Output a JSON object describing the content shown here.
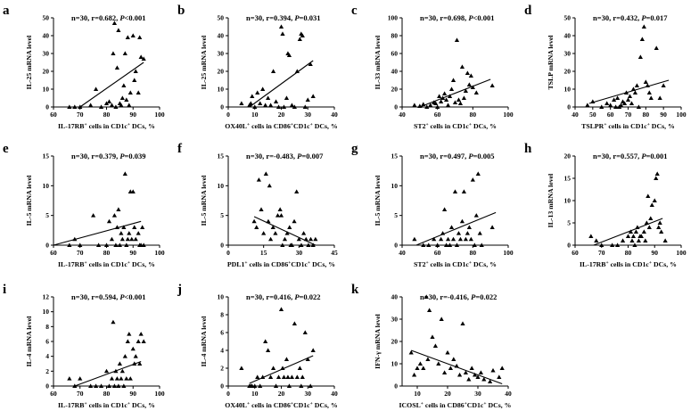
{
  "chart_data": [
    {
      "id": "a",
      "type": "scatter",
      "panel_label": "a",
      "annotation": {
        "n": "n=30, ",
        "r": "r=0.682, ",
        "p": "P<0.001"
      },
      "ylabel": "IL-25 mRNA level",
      "xlabel": "IL-17RB<sup>+</sup> cells in CD1c<sup>+</sup> DCs, %",
      "xlim": [
        60,
        100
      ],
      "ylim": [
        0,
        50
      ],
      "xticks": [
        60,
        70,
        80,
        90,
        100
      ],
      "yticks": [
        0,
        10,
        20,
        30,
        40,
        50
      ],
      "x": [
        66,
        68,
        70,
        74,
        76,
        78,
        80,
        81,
        82,
        82.5,
        83,
        83.5,
        84,
        84.5,
        85,
        85.5,
        86,
        86.5,
        87,
        87.5,
        88,
        88.5,
        89,
        90,
        90.5,
        91,
        92,
        92.5,
        93,
        94
      ],
      "y": [
        0,
        0,
        0,
        1,
        10,
        0,
        2,
        3,
        1,
        30,
        47,
        0,
        22,
        43,
        2,
        1,
        5,
        12,
        30,
        4,
        39,
        1,
        8,
        40,
        15,
        20,
        8,
        39,
        28,
        27
      ],
      "fit": [
        [
          70,
          0
        ],
        [
          94,
          25
        ]
      ]
    },
    {
      "id": "b",
      "type": "scatter",
      "panel_label": "b",
      "annotation": {
        "n": "n=30, ",
        "r": "r=0.394, ",
        "p": "P=0.031"
      },
      "ylabel": "IL-25 mRNA level",
      "xlabel": "OX40L<sup>+</sup> cells in CD86<sup>+</sup>CD1c<sup>+</sup> DCs, %",
      "xlim": [
        0,
        40
      ],
      "ylim": [
        0,
        50
      ],
      "xticks": [
        0,
        10,
        20,
        30,
        40
      ],
      "yticks": [
        0,
        10,
        20,
        30,
        40,
        50
      ],
      "x": [
        5,
        8,
        9,
        10,
        11,
        12,
        13,
        14,
        15,
        16,
        17,
        18,
        19,
        20,
        20.5,
        21,
        22,
        23,
        24,
        25,
        26,
        27,
        27.5,
        28,
        29,
        30,
        31,
        32,
        8.5,
        22.5
      ],
      "y": [
        2,
        1,
        6,
        0,
        8,
        2,
        10,
        1,
        5,
        1,
        20,
        3,
        0,
        45,
        41,
        0,
        5,
        29,
        1,
        0,
        20,
        38,
        41,
        40,
        0,
        4,
        24,
        6,
        2,
        30
      ],
      "fit": [
        [
          8,
          0
        ],
        [
          32,
          26
        ]
      ]
    },
    {
      "id": "c",
      "type": "scatter",
      "panel_label": "c",
      "annotation": {
        "n": "n=30, ",
        "r": "r=0.698, ",
        "p": "P<0.001"
      },
      "ylabel": "IL-33 mRNA level",
      "xlabel": "ST2<sup>+</sup> cells in CD1c<sup>+</sup> DCs, %",
      "xlim": [
        40,
        100
      ],
      "ylim": [
        0,
        100
      ],
      "xticks": [
        40,
        60,
        80,
        100
      ],
      "yticks": [
        0,
        20,
        40,
        60,
        80,
        100
      ],
      "x": [
        47,
        50,
        52,
        54,
        56,
        58,
        59,
        60,
        61,
        62,
        63,
        64,
        65,
        66,
        67,
        68,
        69,
        70,
        71,
        72,
        73,
        74,
        75,
        76,
        77,
        78,
        79,
        80,
        82,
        91
      ],
      "y": [
        2,
        1,
        3,
        0,
        2,
        5,
        4,
        0,
        12,
        6,
        10,
        15,
        8,
        2,
        12,
        20,
        30,
        5,
        75,
        8,
        4,
        45,
        10,
        18,
        38,
        25,
        35,
        22,
        16,
        24
      ],
      "fit": [
        [
          50,
          0
        ],
        [
          90,
          31
        ]
      ]
    },
    {
      "id": "d",
      "type": "scatter",
      "panel_label": "d",
      "annotation": {
        "n": "n=30, ",
        "r": "r=0.432, ",
        "p": "P=0.017"
      },
      "ylabel": "TSLP mRNA level",
      "xlabel": "TSLPR<sup>+</sup> cells in CD1c<sup>+</sup> DCs, %",
      "xlim": [
        40,
        100
      ],
      "ylim": [
        0,
        50
      ],
      "xticks": [
        40,
        50,
        60,
        70,
        80,
        90,
        100
      ],
      "yticks": [
        0,
        10,
        20,
        30,
        40,
        50
      ],
      "x": [
        47,
        50,
        55,
        58,
        60,
        62,
        63,
        64,
        65,
        66,
        67,
        68,
        69,
        70,
        71,
        72,
        73,
        74,
        75,
        76,
        77,
        78,
        79,
        80,
        81,
        82,
        83,
        86,
        88,
        90
      ],
      "y": [
        1,
        3,
        0,
        2,
        1,
        4,
        0,
        5,
        0,
        1,
        3,
        2,
        8,
        4,
        6,
        2,
        10,
        8,
        12,
        0,
        28,
        38,
        45,
        14,
        12,
        8,
        5,
        33,
        5,
        12
      ],
      "fit": [
        [
          48,
          2
        ],
        [
          93,
          15
        ]
      ]
    },
    {
      "id": "e",
      "type": "scatter",
      "panel_label": "e",
      "annotation": {
        "n": "n=30, ",
        "r": "r=0.379, ",
        "p": "P=0.039"
      },
      "ylabel": "IL-5 mRNA level",
      "xlabel": "IL-17RB<sup>+</sup> cells in CD1c<sup>+</sup> DCs, %",
      "xlim": [
        60,
        100
      ],
      "ylim": [
        0,
        15
      ],
      "xticks": [
        60,
        70,
        80,
        90,
        100
      ],
      "yticks": [
        0,
        5,
        10,
        15
      ],
      "x": [
        66,
        68,
        70,
        75,
        77,
        80,
        81,
        82,
        83,
        83.5,
        84,
        84.5,
        85,
        85.5,
        86,
        86.5,
        87,
        87.5,
        88,
        88.5,
        89,
        90,
        90.5,
        91,
        92,
        92.5,
        93,
        93.5,
        94,
        89.5
      ],
      "y": [
        0,
        1,
        0,
        5,
        0,
        0,
        4,
        1,
        5,
        0,
        3,
        6,
        0,
        2,
        1,
        3,
        12,
        0,
        1,
        2,
        9,
        9,
        3,
        1,
        2,
        0,
        0,
        3,
        0,
        1
      ],
      "fit": [
        [
          60,
          0
        ],
        [
          93,
          4
        ]
      ]
    },
    {
      "id": "f",
      "type": "scatter",
      "panel_label": "f",
      "annotation": {
        "n": "n=30, ",
        "r": "r=-0.483, ",
        "p": "P=0.007"
      },
      "ylabel": "IL-5 mRNA level",
      "xlabel": "PDL1<sup>+</sup> cells in CD86<sup>+</sup>CD1c<sup>+</sup> DCs, %",
      "xlim": [
        0,
        45
      ],
      "ylim": [
        0,
        15
      ],
      "xticks": [
        0,
        15,
        30,
        45
      ],
      "yticks": [
        0,
        5,
        10,
        15
      ],
      "x": [
        11,
        12,
        13,
        14,
        15,
        16,
        17,
        17.5,
        18,
        19,
        20,
        21,
        22,
        23,
        24,
        25,
        26,
        27,
        28,
        29,
        30,
        31,
        32,
        33,
        34,
        35,
        36,
        37,
        22.5,
        26.5
      ],
      "y": [
        4,
        3,
        11,
        6,
        2,
        12,
        4,
        10,
        1,
        3,
        2,
        5,
        6,
        0,
        1,
        2,
        3,
        0,
        4,
        9,
        1,
        0,
        2,
        1,
        0,
        1,
        0,
        1,
        5,
        0
      ],
      "fit": [
        [
          11,
          4.8
        ],
        [
          37,
          0
        ]
      ]
    },
    {
      "id": "g",
      "type": "scatter",
      "panel_label": "g",
      "annotation": {
        "n": "n=30, ",
        "r": "r=0.497, ",
        "p": "P=0.005"
      },
      "ylabel": "IL-5 mRNA level",
      "xlabel": "ST2<sup>+</sup> cells in CD1c<sup>+</sup> DCs, %",
      "xlim": [
        40,
        100
      ],
      "ylim": [
        0,
        15
      ],
      "xticks": [
        40,
        60,
        80,
        100
      ],
      "yticks": [
        0,
        5,
        10,
        15
      ],
      "x": [
        47,
        52,
        55,
        58,
        60,
        62,
        63,
        64,
        65,
        66,
        67,
        68,
        69,
        70,
        71,
        72,
        73,
        74,
        75,
        76,
        77,
        78,
        79,
        80,
        81,
        82,
        83,
        84,
        85,
        91
      ],
      "y": [
        1,
        0,
        0,
        1,
        0,
        1,
        2,
        6,
        0,
        1,
        0,
        3,
        1,
        9,
        0,
        2,
        1,
        4,
        9,
        1,
        2,
        3,
        1,
        11,
        0,
        5,
        12,
        2,
        0,
        3
      ],
      "fit": [
        [
          48,
          0
        ],
        [
          93,
          5.5
        ]
      ]
    },
    {
      "id": "h",
      "type": "scatter",
      "panel_label": "h",
      "annotation": {
        "n": "n=30, ",
        "r": "r=0.557, ",
        "p": "P=0.001"
      },
      "ylabel": "IL-13 mRNA level",
      "xlabel": "IL-17RB<sup>+</sup> cells in CD1c<sup>+</sup> DCs, %",
      "xlim": [
        60,
        100
      ],
      "ylim": [
        0,
        20
      ],
      "xticks": [
        60,
        70,
        80,
        90,
        100
      ],
      "yticks": [
        0,
        5,
        10,
        15,
        20
      ],
      "x": [
        66,
        68,
        70,
        74,
        76,
        78,
        80,
        81,
        81.5,
        82,
        82.5,
        83,
        83.5,
        84,
        84.5,
        85,
        86,
        86.5,
        87,
        87.5,
        88,
        88.5,
        89,
        90,
        90.5,
        91,
        91.5,
        92,
        92.5,
        94
      ],
      "y": [
        2,
        1,
        0,
        0,
        0,
        1,
        2,
        3,
        1,
        2,
        0,
        3,
        4,
        1,
        2,
        2,
        3,
        1,
        5,
        11,
        4,
        6,
        9,
        10,
        15,
        16,
        4,
        5,
        3,
        1
      ],
      "fit": [
        [
          67,
          0
        ],
        [
          93,
          6
        ]
      ]
    },
    {
      "id": "i",
      "type": "scatter",
      "panel_label": "i",
      "annotation": {
        "n": "n=30, ",
        "r": "r=0.594, ",
        "p": "P<0.001"
      },
      "ylabel": "IL-4 mRNA level",
      "xlabel": "IL-17RB<sup>+</sup> cells in CD1c<sup>+</sup> DCs, %",
      "xlim": [
        60,
        100
      ],
      "ylim": [
        0,
        12
      ],
      "xticks": [
        60,
        70,
        80,
        90,
        100
      ],
      "yticks": [
        0,
        2,
        4,
        6,
        8,
        10,
        12
      ],
      "x": [
        66,
        68,
        70,
        74,
        76,
        78,
        80,
        81,
        82,
        82.5,
        83,
        83.5,
        84,
        84.5,
        85,
        85.5,
        86,
        86.5,
        87,
        87.5,
        88,
        88.5,
        89,
        90,
        90.5,
        91,
        92,
        92.5,
        93,
        94
      ],
      "y": [
        1,
        0,
        1,
        0,
        0,
        0,
        2,
        0,
        1,
        8.6,
        0,
        2,
        1,
        0,
        3,
        1,
        2,
        0,
        4,
        1,
        6,
        7,
        1,
        5,
        3,
        4,
        6,
        3,
        7,
        6
      ],
      "fit": [
        [
          68,
          0
        ],
        [
          93,
          3.3
        ]
      ]
    },
    {
      "id": "j",
      "type": "scatter",
      "panel_label": "j",
      "annotation": {
        "n": "n=30, ",
        "r": "r=0.416, ",
        "p": "P=0.022"
      },
      "ylabel": "IL-4 mRNA level",
      "xlabel": "OX40L<sup>+</sup> cells in CD86<sup>+</sup>CD1c<sup>+</sup> DCs, %",
      "xlim": [
        0,
        40
      ],
      "ylim": [
        0,
        10
      ],
      "xticks": [
        0,
        10,
        20,
        30,
        40
      ],
      "yticks": [
        0,
        2,
        4,
        6,
        8,
        10
      ],
      "x": [
        5,
        8,
        9,
        10,
        11,
        12,
        13,
        14,
        15,
        16,
        17,
        18,
        19,
        20,
        20.5,
        21,
        22,
        23,
        24,
        25,
        26,
        27,
        27.5,
        28,
        29,
        30,
        31,
        32,
        8.5,
        22.5
      ],
      "y": [
        2,
        0,
        0,
        0,
        1,
        0,
        1,
        5,
        4,
        1,
        2,
        0,
        1,
        8.6,
        2,
        1,
        3,
        0,
        1,
        7,
        1,
        2,
        0,
        1,
        6,
        3,
        0,
        4,
        0,
        1
      ],
      "fit": [
        [
          8,
          0.3
        ],
        [
          32,
          3.4
        ]
      ]
    },
    {
      "id": "k",
      "type": "scatter",
      "panel_label": "k",
      "annotation": {
        "n": "n=30, ",
        "r": "r=-0.416, ",
        "p": "P=0.022"
      },
      "ylabel": "IFN-γ mRNA level",
      "xlabel": "ICOSL<sup>+</sup> cells in CD86<sup>+</sup>CD1c<sup>+</sup> DCs, %",
      "xlim": [
        5,
        40
      ],
      "ylim": [
        0,
        40
      ],
      "xticks": [
        10,
        20,
        30,
        40
      ],
      "yticks": [
        0,
        10,
        20,
        30,
        40
      ],
      "x": [
        8,
        9,
        10,
        11,
        12,
        13,
        13.5,
        14,
        15,
        16,
        17,
        18,
        19,
        20,
        21,
        22,
        23,
        24,
        25,
        26,
        27,
        28,
        29,
        30,
        31,
        32,
        34,
        35,
        37,
        38
      ],
      "y": [
        15,
        5,
        8,
        10,
        8,
        40,
        12,
        34,
        22,
        18,
        10,
        30,
        6,
        15,
        8,
        12,
        9,
        5,
        28,
        6,
        3,
        8,
        5,
        4,
        6,
        3,
        2,
        7,
        4,
        8
      ],
      "fit": [
        [
          8,
          16
        ],
        [
          38,
          1
        ]
      ]
    }
  ]
}
